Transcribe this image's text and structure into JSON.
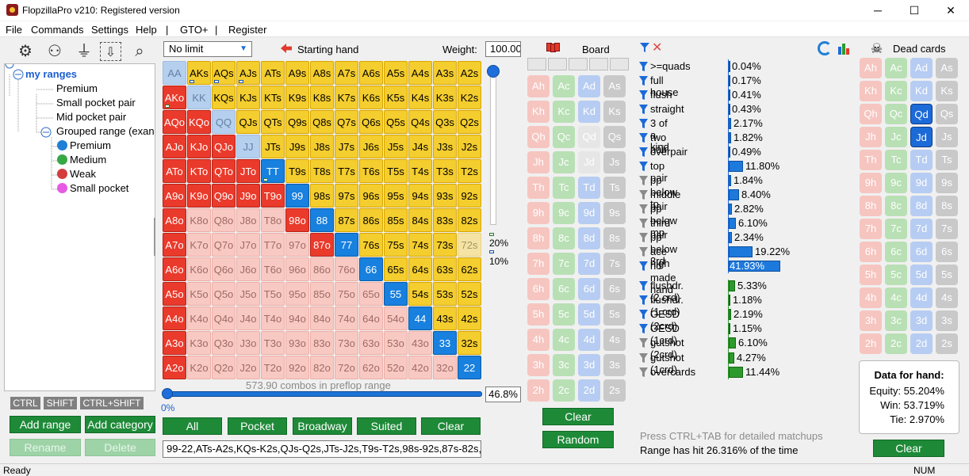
{
  "window": {
    "title": "FlopzillaPro v210: Registered version",
    "controls": {
      "minimize": "─",
      "maximize": "☐",
      "close": "✕"
    }
  },
  "menu": [
    "File",
    "Commands",
    "Settings",
    "Help",
    "|",
    "GTO+",
    "|",
    "Register"
  ],
  "tree": {
    "root": "my ranges",
    "items": [
      "Premium",
      "Small pocket pair",
      "Mid pocket pair",
      "Grouped range (exan"
    ],
    "subitems": [
      {
        "label": "Premium",
        "color": "#1e7fd6"
      },
      {
        "label": "Medium",
        "color": "#36a844"
      },
      {
        "label": "Weak",
        "color": "#d43d3d"
      },
      {
        "label": "Small pocket",
        "color": "#e65be3"
      }
    ]
  },
  "keys": [
    "CTRL",
    "SHIFT",
    "CTRL+SHIFT"
  ],
  "left_buttons": {
    "add_range": "Add range",
    "add_category": "Add category",
    "rename": "Rename",
    "delete": "Delete"
  },
  "range": {
    "game_type": "No limit",
    "starting_hand_label": "Starting hand",
    "weight_label": "Weight:",
    "weight_value": "100.00",
    "combos_text": "573.90 combos in preflop range",
    "slider_pct": "0%",
    "range_pct": "46.8%",
    "vslider_20": "20%",
    "vslider_10": "10%",
    "range_text": "99-22,ATs-A2s,KQs-K2s,QJs-Q2s,JTs-J2s,T9s-T2s,98s-92s,87s-82s,76"
  },
  "range_buttons": [
    "All",
    "Pocket",
    "Broadway",
    "Suited",
    "Clear"
  ],
  "hand_grid": [
    [
      "AA",
      "AKs",
      "AQs",
      "AJs",
      "ATs",
      "A9s",
      "A8s",
      "A7s",
      "A6s",
      "A5s",
      "A4s",
      "A3s",
      "A2s"
    ],
    [
      "AKo",
      "KK",
      "KQs",
      "KJs",
      "KTs",
      "K9s",
      "K8s",
      "K7s",
      "K6s",
      "K5s",
      "K4s",
      "K3s",
      "K2s"
    ],
    [
      "AQo",
      "KQo",
      "QQ",
      "QJs",
      "QTs",
      "Q9s",
      "Q8s",
      "Q7s",
      "Q6s",
      "Q5s",
      "Q4s",
      "Q3s",
      "Q2s"
    ],
    [
      "AJo",
      "KJo",
      "QJo",
      "JJ",
      "JTs",
      "J9s",
      "J8s",
      "J7s",
      "J6s",
      "J5s",
      "J4s",
      "J3s",
      "J2s"
    ],
    [
      "ATo",
      "KTo",
      "QTo",
      "JTo",
      "TT",
      "T9s",
      "T8s",
      "T7s",
      "T6s",
      "T5s",
      "T4s",
      "T3s",
      "T2s"
    ],
    [
      "A9o",
      "K9o",
      "Q9o",
      "J9o",
      "T9o",
      "99",
      "98s",
      "97s",
      "96s",
      "95s",
      "94s",
      "93s",
      "92s"
    ],
    [
      "A8o",
      "K8o",
      "Q8o",
      "J8o",
      "T8o",
      "98o",
      "88",
      "87s",
      "86s",
      "85s",
      "84s",
      "83s",
      "82s"
    ],
    [
      "A7o",
      "K7o",
      "Q7o",
      "J7o",
      "T7o",
      "97o",
      "87o",
      "77",
      "76s",
      "75s",
      "74s",
      "73s",
      "72s"
    ],
    [
      "A6o",
      "K6o",
      "Q6o",
      "J6o",
      "T6o",
      "96o",
      "86o",
      "76o",
      "66",
      "65s",
      "64s",
      "63s",
      "62s"
    ],
    [
      "A5o",
      "K5o",
      "Q5o",
      "J5o",
      "T5o",
      "95o",
      "85o",
      "75o",
      "65o",
      "55",
      "54s",
      "53s",
      "52s"
    ],
    [
      "A4o",
      "K4o",
      "Q4o",
      "J4o",
      "T4o",
      "94o",
      "84o",
      "74o",
      "64o",
      "54o",
      "44",
      "43s",
      "42s"
    ],
    [
      "A3o",
      "K3o",
      "Q3o",
      "J3o",
      "T3o",
      "93o",
      "83o",
      "73o",
      "63o",
      "53o",
      "43o",
      "33",
      "32s"
    ],
    [
      "A2o",
      "K2o",
      "Q2o",
      "J2o",
      "T2o",
      "92o",
      "82o",
      "72o",
      "62o",
      "52o",
      "42o",
      "32o",
      "22"
    ]
  ],
  "board": {
    "label": "Board",
    "clear": "Clear",
    "random": "Random",
    "cards": [
      [
        "Ah",
        "Ac",
        "Ad",
        "As"
      ],
      [
        "Kh",
        "Kc",
        "Kd",
        "Ks"
      ],
      [
        "Qh",
        "Qc",
        "Qd",
        "Qs"
      ],
      [
        "Jh",
        "Jc",
        "Jd",
        "Js"
      ],
      [
        "Th",
        "Tc",
        "Td",
        "Ts"
      ],
      [
        "9h",
        "9c",
        "9d",
        "9s"
      ],
      [
        "8h",
        "8c",
        "8d",
        "8s"
      ],
      [
        "7h",
        "7c",
        "7d",
        "7s"
      ],
      [
        "6h",
        "6c",
        "6d",
        "6s"
      ],
      [
        "5h",
        "5c",
        "5d",
        "5s"
      ],
      [
        "4h",
        "4c",
        "4d",
        "4s"
      ],
      [
        "3h",
        "3c",
        "3d",
        "3s"
      ],
      [
        "2h",
        "2c",
        "2d",
        "2s"
      ]
    ]
  },
  "stats": [
    {
      "label": ">=quads",
      "value": "0.04%",
      "pct": 0.04,
      "filter": "blue",
      "color": "blue"
    },
    {
      "label": "full house",
      "value": "0.17%",
      "pct": 0.17,
      "filter": "blue",
      "color": "blue"
    },
    {
      "label": "flush",
      "value": "0.41%",
      "pct": 0.41,
      "filter": "blue",
      "color": "blue"
    },
    {
      "label": "straight",
      "value": "0.43%",
      "pct": 0.43,
      "filter": "blue",
      "color": "blue"
    },
    {
      "label": "3 of a kind",
      "value": "2.17%",
      "pct": 2.17,
      "filter": "blue",
      "color": "blue"
    },
    {
      "label": "two pair",
      "value": "1.82%",
      "pct": 1.82,
      "filter": "blue",
      "color": "blue"
    },
    {
      "label": "overpair",
      "value": "0.49%",
      "pct": 0.49,
      "filter": "blue",
      "color": "blue"
    },
    {
      "label": "top pair",
      "value": "11.80%",
      "pct": 11.8,
      "filter": "blue",
      "color": "blue"
    },
    {
      "label": "pp below tp",
      "value": "1.84%",
      "pct": 1.84,
      "filter": "grey",
      "color": "blue"
    },
    {
      "label": "middle pair",
      "value": "8.40%",
      "pct": 8.4,
      "filter": "grey",
      "color": "blue"
    },
    {
      "label": "pp below mp",
      "value": "2.82%",
      "pct": 2.82,
      "filter": "grey",
      "color": "blue"
    },
    {
      "label": "third pair",
      "value": "6.10%",
      "pct": 6.1,
      "filter": "grey",
      "color": "blue"
    },
    {
      "label": "pp below 3rd",
      "value": "2.34%",
      "pct": 2.34,
      "filter": "grey",
      "color": "blue"
    },
    {
      "label": "ace high",
      "value": "19.22%",
      "pct": 19.22,
      "filter": "grey",
      "color": "blue"
    },
    {
      "label": "no made hand",
      "value": "41.93%",
      "pct": 41.93,
      "filter": "blue",
      "color": "blue"
    },
    {
      "label": "flushdr. (2 crd)",
      "value": "5.33%",
      "pct": 5.33,
      "filter": "blue",
      "color": "green"
    },
    {
      "label": "flushdr. (1 crd)",
      "value": "1.18%",
      "pct": 1.18,
      "filter": "blue",
      "color": "green"
    },
    {
      "label": "OESD (2crd)",
      "value": "2.19%",
      "pct": 2.19,
      "filter": "blue",
      "color": "green"
    },
    {
      "label": "OESD (1crd)",
      "value": "1.15%",
      "pct": 1.15,
      "filter": "blue",
      "color": "green"
    },
    {
      "label": "gutshot (2crd)",
      "value": "6.10%",
      "pct": 6.1,
      "filter": "grey",
      "color": "green"
    },
    {
      "label": "gutshot (1crd)",
      "value": "4.27%",
      "pct": 4.27,
      "filter": "grey",
      "color": "green"
    },
    {
      "label": "overcards",
      "value": "11.44%",
      "pct": 11.44,
      "filter": "grey",
      "color": "green"
    }
  ],
  "info": {
    "ctrl_tab": "Press CTRL+TAB for detailed matchups",
    "hit_text": "Range has hit 26.316% of the time"
  },
  "dead": {
    "label": "Dead cards",
    "clear": "Clear"
  },
  "hand_data": {
    "title": "Data for hand:",
    "equity": "Equity: 55.204%",
    "win": "Win: 53.719%",
    "tie": "Tie: 2.970%"
  },
  "status": {
    "left": "Ready",
    "right": "NUM"
  }
}
